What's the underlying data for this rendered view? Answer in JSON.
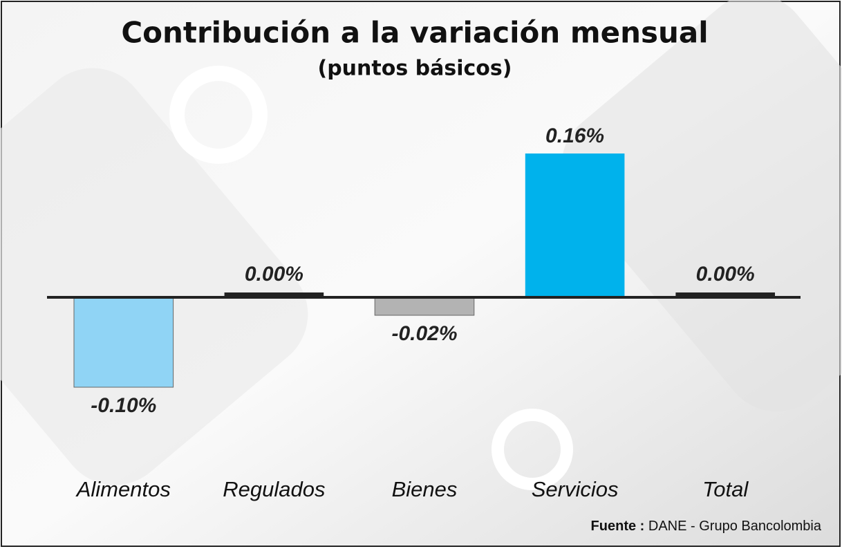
{
  "chart_data": {
    "type": "bar",
    "title": "Contribución a la variación mensual",
    "subtitle": "(puntos básicos)",
    "categories": [
      "Alimentos",
      "Regulados",
      "Bienes",
      "Servicios",
      "Total"
    ],
    "values": [
      -0.1,
      0.0,
      -0.02,
      0.16,
      0.0
    ],
    "value_labels": [
      "-0.10%",
      "0.00%",
      "-0.02%",
      "0.16%",
      "0.00%"
    ],
    "colors": [
      "#90d4f5",
      "#222222",
      "#b3b3b3",
      "#00b2ec",
      "#222222"
    ],
    "ylim": [
      -0.12,
      0.2
    ],
    "source_label": "Fuente :",
    "source": "DANE - Grupo Bancolombia"
  }
}
